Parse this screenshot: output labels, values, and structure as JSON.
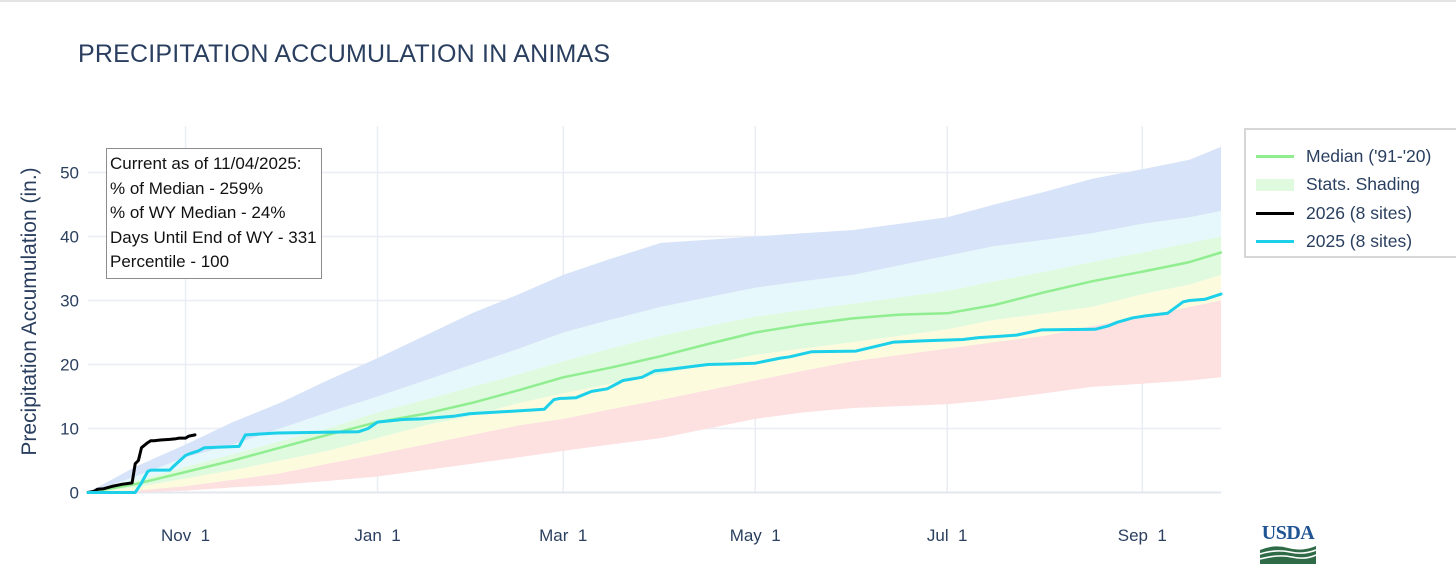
{
  "title": "PRECIPITATION ACCUMULATION IN ANIMAS",
  "info_box": {
    "current_as_of": "Current as of 11/04/2025:",
    "pct_median": "% of Median - 259%",
    "pct_wy_median": "% of WY Median - 24%",
    "days_until_end": "Days Until End of WY - 331",
    "percentile": "Percentile - 100"
  },
  "legend": [
    {
      "label": "Median ('91-'20)",
      "color": "#90ee90",
      "kind": "line"
    },
    {
      "label": "Stats. Shading",
      "color": "#dffadf",
      "kind": "fill"
    },
    {
      "label": "2026 (8 sites)",
      "color": "#000000",
      "kind": "line"
    },
    {
      "label": "2025 (8 sites)",
      "color": "#1cd0ea",
      "kind": "line"
    }
  ],
  "logo": {
    "text": "USDA"
  },
  "colors": {
    "grid": "#e9edf4",
    "axis_text": "#2a3f5f",
    "band_max": "#d6e3f8",
    "band_high": "#e6f8fb",
    "band_above": "#dffadf",
    "band_below": "#fcfbdd",
    "band_low": "#fde0e0",
    "median": "#90ee90",
    "wy2026": "#000000",
    "wy2025": "#1cd0ea"
  },
  "chart_data": {
    "type": "line",
    "title": "PRECIPITATION ACCUMULATION IN ANIMAS",
    "xlabel": "",
    "ylabel": "Precipitation Accumulation (in.)",
    "xlim": [
      0,
      360
    ],
    "ylim": [
      0,
      57
    ],
    "x_unit": "day of water year (Oct 1 = 0)",
    "x_ticks": [
      {
        "day": 31,
        "label": "Nov  1"
      },
      {
        "day": 92,
        "label": "Jan  1"
      },
      {
        "day": 151,
        "label": "Mar  1"
      },
      {
        "day": 212,
        "label": "May  1"
      },
      {
        "day": 273,
        "label": "Jul  1"
      },
      {
        "day": 335,
        "label": "Sep  1"
      }
    ],
    "y_ticks": [
      0,
      10,
      20,
      30,
      40,
      50
    ],
    "grid": true,
    "legend_position": "right",
    "bands": {
      "days": [
        0,
        15,
        31,
        46,
        61,
        76,
        92,
        107,
        122,
        137,
        151,
        166,
        182,
        197,
        212,
        227,
        243,
        258,
        273,
        288,
        304,
        319,
        335,
        350,
        360
      ],
      "min": [
        0,
        0,
        0.3,
        0.8,
        1.2,
        1.8,
        2.5,
        3.5,
        4.5,
        5.5,
        6.5,
        7.5,
        8.5,
        10,
        11.5,
        12.5,
        13.2,
        13.5,
        13.8,
        14.5,
        15.5,
        16.5,
        17,
        17.5,
        18
      ],
      "p10": [
        0,
        0.3,
        1,
        2,
        3,
        4.5,
        6,
        7.5,
        9,
        10.5,
        11.5,
        13,
        14.5,
        16,
        17.5,
        19,
        20.5,
        21.5,
        22.5,
        23.5,
        24.5,
        26,
        27.5,
        29,
        30
      ],
      "p30": [
        0,
        0.8,
        2.2,
        3.5,
        5,
        6.5,
        8.5,
        10.5,
        12,
        14,
        15.5,
        17,
        18.5,
        20,
        21.5,
        22.5,
        23.5,
        24.5,
        25.5,
        27,
        28,
        29,
        31,
        32.5,
        34
      ],
      "p70": [
        0,
        1.8,
        4,
        6,
        8,
        10,
        12.5,
        14.5,
        16.5,
        18.5,
        20.5,
        22.5,
        24.5,
        26,
        27.5,
        28.5,
        29.5,
        30.5,
        31.5,
        33,
        34.5,
        36,
        37.5,
        39,
        40
      ],
      "p90": [
        0,
        2.5,
        5.5,
        7.5,
        10,
        12.5,
        15,
        17.5,
        20,
        22.5,
        25,
        27,
        29,
        30.5,
        32,
        33,
        34,
        35.5,
        37,
        38.5,
        39.5,
        40.5,
        42,
        43,
        44
      ],
      "max": [
        0,
        4,
        7.5,
        11,
        14,
        17.5,
        21,
        24.5,
        28,
        31,
        34,
        36.5,
        39,
        39.5,
        40,
        40.5,
        41,
        42,
        43,
        45,
        47,
        49,
        50.5,
        52,
        54
      ]
    },
    "series": [
      {
        "name": "Median ('91-'20)",
        "color": "#90ee90",
        "x": [
          0,
          15,
          31,
          46,
          61,
          76,
          92,
          107,
          122,
          137,
          151,
          166,
          182,
          197,
          212,
          227,
          243,
          258,
          273,
          288,
          304,
          319,
          335,
          350,
          360
        ],
        "values": [
          0,
          1.3,
          3.2,
          5,
          7,
          9,
          11,
          12.3,
          14,
          16,
          18,
          19.5,
          21.3,
          23.2,
          25,
          26.2,
          27.2,
          27.8,
          28,
          29.3,
          31.3,
          33,
          34.5,
          36,
          37.5
        ]
      },
      {
        "name": "2026 (8 sites)",
        "color": "#000000",
        "x": [
          0,
          2,
          3,
          5,
          8,
          10,
          11,
          14,
          15,
          16,
          17,
          19,
          20,
          21,
          23,
          26,
          28,
          29,
          31,
          32,
          33,
          34
        ],
        "values": [
          0,
          0.2,
          0.5,
          0.6,
          1,
          1.2,
          1.3,
          1.5,
          4.5,
          5,
          7,
          7.8,
          8.1,
          8.1,
          8.2,
          8.3,
          8.4,
          8.5,
          8.5,
          8.8,
          8.9,
          9
        ]
      },
      {
        "name": "2025 (8 sites)",
        "color": "#1cd0ea",
        "x": [
          0,
          15,
          17,
          19,
          20,
          26,
          27,
          31,
          32,
          35,
          37,
          48,
          50,
          60,
          75,
          86,
          89,
          92,
          100,
          106,
          116,
          120,
          121,
          131,
          145,
          148,
          150,
          151,
          155,
          160,
          165,
          170,
          176,
          180,
          184,
          197,
          212,
          220,
          223,
          230,
          244,
          256,
          266,
          278,
          283,
          290,
          295,
          303,
          320,
          324,
          327,
          332,
          336,
          343,
          348,
          350,
          355,
          360
        ],
        "values": [
          0,
          0,
          1.5,
          3.3,
          3.5,
          3.5,
          4,
          5.8,
          6,
          6.5,
          7,
          7.2,
          9,
          9.3,
          9.4,
          9.5,
          10,
          11,
          11.4,
          11.5,
          11.9,
          12.2,
          12.3,
          12.6,
          13,
          14.5,
          14.7,
          14.7,
          14.8,
          15.8,
          16.2,
          17.5,
          18,
          19,
          19.2,
          20,
          20.2,
          21,
          21.2,
          22,
          22.1,
          23.5,
          23.7,
          23.9,
          24.2,
          24.4,
          24.6,
          25.4,
          25.5,
          26,
          26.6,
          27.3,
          27.6,
          28,
          29.8,
          30,
          30.2,
          31
        ]
      }
    ]
  }
}
